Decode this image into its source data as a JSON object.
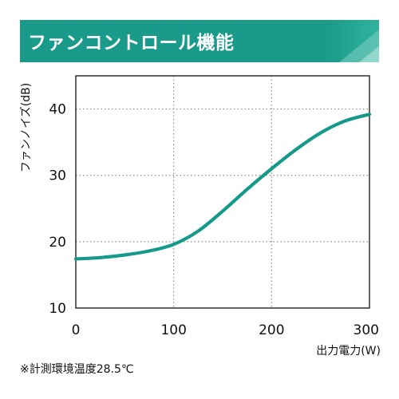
{
  "header": {
    "title": "ファンコントロール機能"
  },
  "colors": {
    "header_bg": "#1a9a8a",
    "header_accent": "#7fd0c2",
    "curve": "#14998a",
    "grid": "#8a8a8a",
    "axis": "#111111"
  },
  "chart_data": {
    "type": "line",
    "title": "",
    "xlabel": "出力電力(W)",
    "ylabel": "ファンノイズ(dB)",
    "xlim": [
      0,
      300
    ],
    "ylim": [
      10,
      45
    ],
    "x_ticks": [
      0,
      100,
      200,
      300
    ],
    "y_ticks": [
      10,
      20,
      30,
      40
    ],
    "grid": true,
    "series": [
      {
        "values": [
          {
            "x": 0,
            "y": 17.4
          },
          {
            "x": 25,
            "y": 17.6
          },
          {
            "x": 50,
            "y": 18.0
          },
          {
            "x": 75,
            "y": 18.6
          },
          {
            "x": 100,
            "y": 19.6
          },
          {
            "x": 125,
            "y": 21.6
          },
          {
            "x": 150,
            "y": 24.6
          },
          {
            "x": 175,
            "y": 27.9
          },
          {
            "x": 200,
            "y": 31.0
          },
          {
            "x": 225,
            "y": 33.9
          },
          {
            "x": 250,
            "y": 36.4
          },
          {
            "x": 275,
            "y": 38.2
          },
          {
            "x": 300,
            "y": 39.2
          }
        ]
      }
    ]
  },
  "footnote": "※計測環境温度28.5℃"
}
